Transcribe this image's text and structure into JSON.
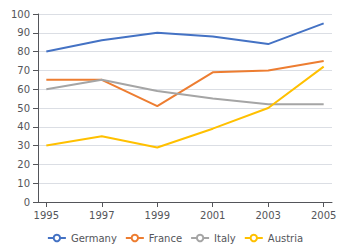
{
  "chart_data": {
    "type": "line",
    "x": [
      1995,
      1997,
      1999,
      2001,
      2003,
      2005
    ],
    "series": [
      {
        "name": "Germany",
        "color": "#4472C4",
        "values": [
          80,
          86,
          90,
          88,
          84,
          95
        ]
      },
      {
        "name": "France",
        "color": "#ED7D31",
        "values": [
          65,
          65,
          51,
          69,
          70,
          75
        ]
      },
      {
        "name": "Italy",
        "color": "#A5A5A5",
        "values": [
          60,
          65,
          59,
          55,
          52,
          52
        ]
      },
      {
        "name": "Austria",
        "color": "#FFC000",
        "values": [
          30,
          35,
          29,
          39,
          50,
          72
        ]
      }
    ],
    "xlim": [
      1994.7,
      2005.3
    ],
    "xticks": [
      1995,
      1997,
      1999,
      2001,
      2003,
      2005
    ],
    "ylim": [
      0,
      100
    ],
    "yticks": [
      0,
      10,
      20,
      30,
      40,
      50,
      60,
      70,
      80,
      90,
      100
    ],
    "grid": true,
    "legend": "bottom"
  }
}
